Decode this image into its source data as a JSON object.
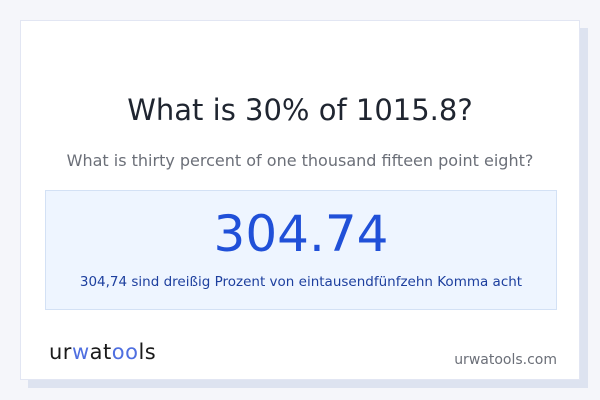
{
  "question": {
    "title": "What is 30% of 1015.8?",
    "subtitle": "What is thirty percent of one thousand fifteen point eight?"
  },
  "result": {
    "value": "304.74",
    "words": "304,74 sind dreißig Prozent von eintausendfünfzehn Komma acht"
  },
  "footer": {
    "logo": "urwatools",
    "site": "urwatools.com"
  },
  "colors": {
    "accent": "#2050d8",
    "result_bg": "#eef5ff",
    "page_bg": "#f5f6fa"
  }
}
